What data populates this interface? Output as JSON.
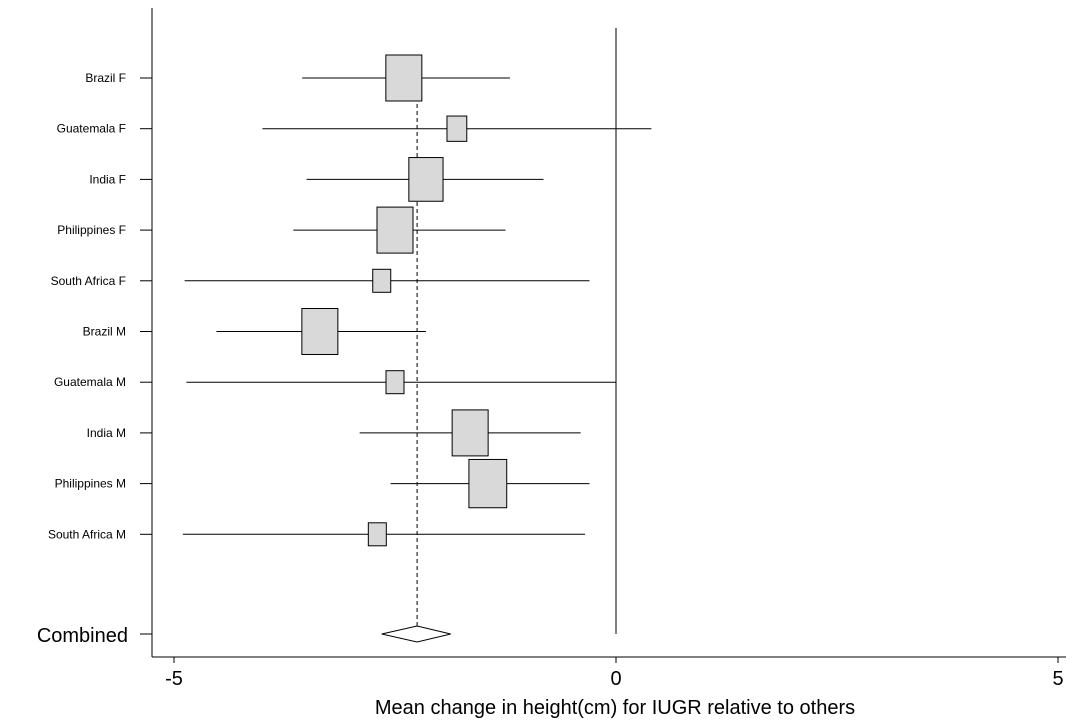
{
  "chart_data": {
    "type": "forest",
    "xlabel": "Mean change in height(cm) for IUGR relative to others",
    "xlim": [
      -5,
      5
    ],
    "x_ticks": [
      -5,
      0,
      5
    ],
    "x_tick_labels": [
      "-5",
      "0",
      "5"
    ],
    "reference_line": 0,
    "pooled_estimate_line": -2.25,
    "box_fill": "#d9d9d9",
    "studies": [
      {
        "label": "Brazil F",
        "estimate": -2.4,
        "ci": [
          -3.55,
          -1.2
        ],
        "weight": 1.0
      },
      {
        "label": "Guatemala F",
        "estimate": -1.8,
        "ci": [
          -4.0,
          0.4
        ],
        "weight": 0.55
      },
      {
        "label": "India F",
        "estimate": -2.15,
        "ci": [
          -3.5,
          -0.82
        ],
        "weight": 0.95
      },
      {
        "label": "Philippines F",
        "estimate": -2.5,
        "ci": [
          -3.65,
          -1.25
        ],
        "weight": 1.0
      },
      {
        "label": "South Africa F",
        "estimate": -2.65,
        "ci": [
          -4.88,
          -0.3
        ],
        "weight": 0.5
      },
      {
        "label": "Brazil M",
        "estimate": -3.35,
        "ci": [
          -4.52,
          -2.15
        ],
        "weight": 1.0
      },
      {
        "label": "Guatemala M",
        "estimate": -2.5,
        "ci": [
          -4.86,
          0.0
        ],
        "weight": 0.5
      },
      {
        "label": "India M",
        "estimate": -1.65,
        "ci": [
          -2.9,
          -0.4
        ],
        "weight": 1.0
      },
      {
        "label": "Philippines M",
        "estimate": -1.45,
        "ci": [
          -2.55,
          -0.3
        ],
        "weight": 1.05
      },
      {
        "label": "South Africa M",
        "estimate": -2.7,
        "ci": [
          -4.9,
          -0.35
        ],
        "weight": 0.5
      }
    ],
    "combined": {
      "label": "Combined",
      "estimate": -2.25,
      "ci": [
        -2.65,
        -1.87
      ]
    }
  }
}
